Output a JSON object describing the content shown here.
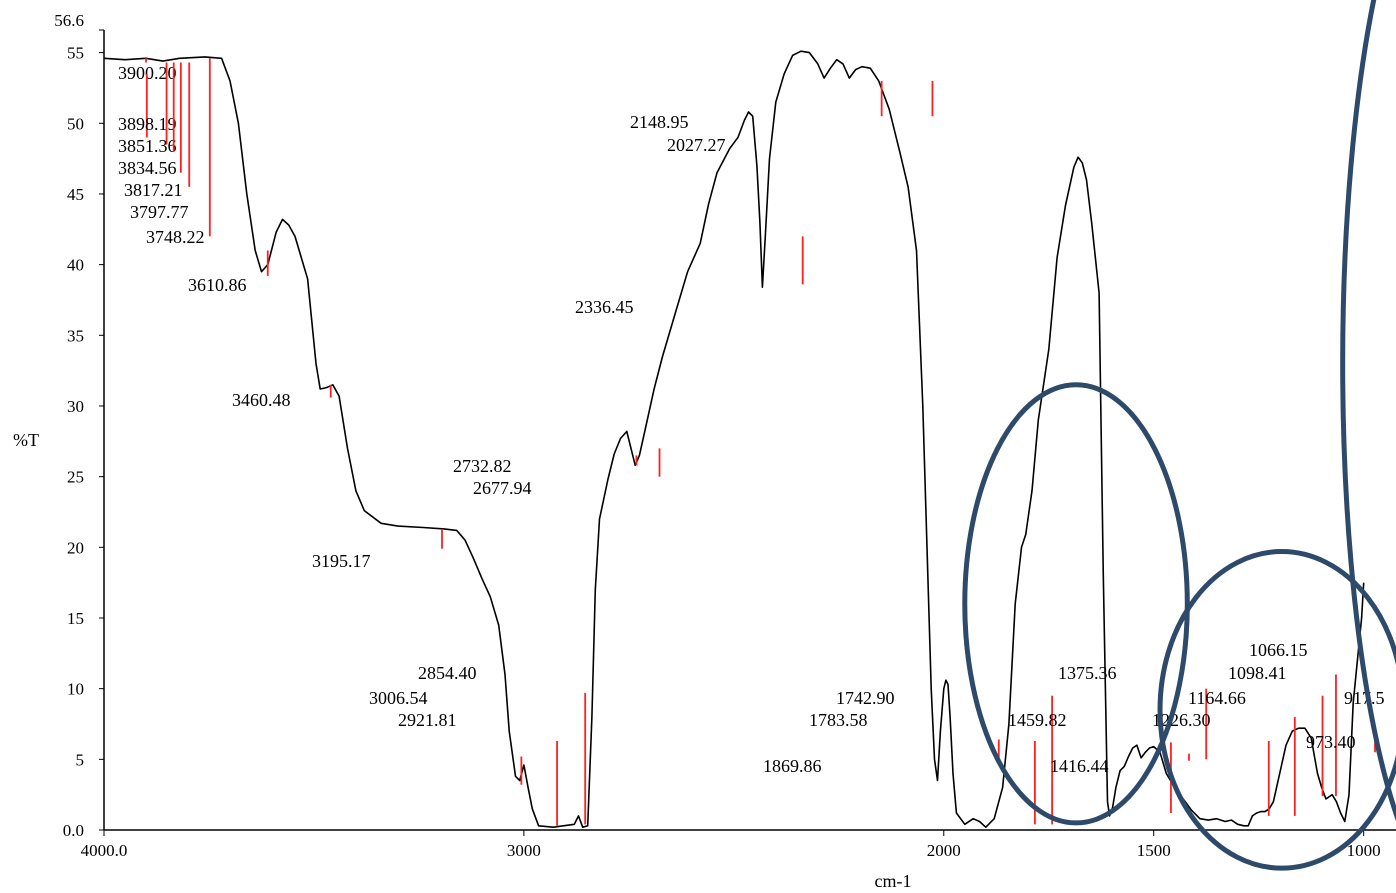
{
  "chart_data": {
    "type": "line",
    "xlabel": "cm-1",
    "ylabel": "%T",
    "x_reversed": true,
    "xlim": [
      4000,
      923
    ],
    "ylim": [
      0,
      56.6
    ],
    "grid": false,
    "x_ticks": [
      {
        "value": 4000,
        "label": "4000.0"
      },
      {
        "value": 3000,
        "label": "3000"
      },
      {
        "value": 2000,
        "label": "2000"
      },
      {
        "value": 1500,
        "label": "1500"
      },
      {
        "value": 1000,
        "label": "1000"
      }
    ],
    "y_ticks": [
      {
        "value": 0,
        "label": "0.0"
      },
      {
        "value": 5,
        "label": "5"
      },
      {
        "value": 10,
        "label": "10"
      },
      {
        "value": 15,
        "label": "15"
      },
      {
        "value": 20,
        "label": "20"
      },
      {
        "value": 25,
        "label": "25"
      },
      {
        "value": 30,
        "label": "30"
      },
      {
        "value": 35,
        "label": "35"
      },
      {
        "value": 40,
        "label": "40"
      },
      {
        "value": 45,
        "label": "45"
      },
      {
        "value": 50,
        "label": "50"
      },
      {
        "value": 55,
        "label": "55"
      },
      {
        "value": 56.6,
        "label": "56.6"
      }
    ],
    "series": [
      {
        "color": "#000000",
        "points": [
          [
            4000,
            54.6
          ],
          [
            3950,
            54.5
          ],
          [
            3900,
            54.6
          ],
          [
            3860,
            54.4
          ],
          [
            3820,
            54.6
          ],
          [
            3760,
            54.7
          ],
          [
            3720,
            54.6
          ],
          [
            3700,
            53
          ],
          [
            3680,
            50
          ],
          [
            3660,
            45
          ],
          [
            3640,
            41
          ],
          [
            3625,
            39.5
          ],
          [
            3610,
            40
          ],
          [
            3590,
            42.3
          ],
          [
            3575,
            43.2
          ],
          [
            3560,
            42.8
          ],
          [
            3545,
            42
          ],
          [
            3530,
            40.5
          ],
          [
            3515,
            39
          ],
          [
            3505,
            36
          ],
          [
            3495,
            33
          ],
          [
            3485,
            31.2
          ],
          [
            3470,
            31.3
          ],
          [
            3455,
            31.5
          ],
          [
            3440,
            30.7
          ],
          [
            3420,
            27
          ],
          [
            3400,
            24
          ],
          [
            3380,
            22.6
          ],
          [
            3340,
            21.7
          ],
          [
            3300,
            21.5
          ],
          [
            3240,
            21.4
          ],
          [
            3190,
            21.3
          ],
          [
            3160,
            21.2
          ],
          [
            3140,
            20.5
          ],
          [
            3120,
            19.2
          ],
          [
            3100,
            17.8
          ],
          [
            3080,
            16.5
          ],
          [
            3060,
            14.5
          ],
          [
            3045,
            11
          ],
          [
            3035,
            7
          ],
          [
            3020,
            3.8
          ],
          [
            3010,
            3.5
          ],
          [
            3000,
            4.6
          ],
          [
            2990,
            3
          ],
          [
            2980,
            1.5
          ],
          [
            2965,
            0.3
          ],
          [
            2930,
            0.2
          ],
          [
            2880,
            0.4
          ],
          [
            2870,
            1
          ],
          [
            2860,
            0.2
          ],
          [
            2848,
            0.3
          ],
          [
            2838,
            8
          ],
          [
            2830,
            17
          ],
          [
            2820,
            22
          ],
          [
            2800,
            24.8
          ],
          [
            2785,
            26.6
          ],
          [
            2770,
            27.7
          ],
          [
            2755,
            28.2
          ],
          [
            2745,
            27
          ],
          [
            2735,
            25.8
          ],
          [
            2725,
            26.5
          ],
          [
            2710,
            28.5
          ],
          [
            2690,
            31.2
          ],
          [
            2670,
            33.5
          ],
          [
            2640,
            36.5
          ],
          [
            2610,
            39.5
          ],
          [
            2580,
            41.5
          ],
          [
            2560,
            44.3
          ],
          [
            2540,
            46.5
          ],
          [
            2510,
            48.2
          ],
          [
            2490,
            49
          ],
          [
            2475,
            50.2
          ],
          [
            2465,
            50.8
          ],
          [
            2455,
            50.5
          ],
          [
            2445,
            47
          ],
          [
            2438,
            43
          ],
          [
            2432,
            38.4
          ],
          [
            2425,
            42
          ],
          [
            2415,
            47.5
          ],
          [
            2400,
            51.5
          ],
          [
            2380,
            53.5
          ],
          [
            2360,
            54.8
          ],
          [
            2340,
            55.1
          ],
          [
            2320,
            55
          ],
          [
            2300,
            54.2
          ],
          [
            2285,
            53.2
          ],
          [
            2270,
            53.9
          ],
          [
            2255,
            54.5
          ],
          [
            2240,
            54.2
          ],
          [
            2225,
            53.2
          ],
          [
            2210,
            53.8
          ],
          [
            2195,
            54
          ],
          [
            2175,
            53.9
          ],
          [
            2155,
            53
          ],
          [
            2130,
            51
          ],
          [
            2105,
            48
          ],
          [
            2085,
            45.5
          ],
          [
            2065,
            41
          ],
          [
            2050,
            30
          ],
          [
            2040,
            20
          ],
          [
            2030,
            10
          ],
          [
            2022,
            5
          ],
          [
            2015,
            3.5
          ],
          [
            2008,
            7
          ],
          [
            2000,
            10
          ],
          [
            1995,
            10.6
          ],
          [
            1990,
            10.3
          ],
          [
            1985,
            8
          ],
          [
            1978,
            4
          ],
          [
            1970,
            1.2
          ],
          [
            1950,
            0.4
          ],
          [
            1930,
            0.8
          ],
          [
            1915,
            0.6
          ],
          [
            1900,
            0.2
          ],
          [
            1880,
            0.8
          ],
          [
            1860,
            3
          ],
          [
            1845,
            7.5
          ],
          [
            1830,
            16
          ],
          [
            1815,
            20
          ],
          [
            1805,
            20.9
          ],
          [
            1790,
            24
          ],
          [
            1775,
            29
          ],
          [
            1765,
            31
          ],
          [
            1750,
            34
          ],
          [
            1730,
            40.5
          ],
          [
            1710,
            44.2
          ],
          [
            1690,
            46.9
          ],
          [
            1680,
            47.6
          ],
          [
            1670,
            47.2
          ],
          [
            1660,
            46
          ],
          [
            1648,
            43
          ],
          [
            1630,
            38
          ],
          [
            1625,
            28
          ],
          [
            1620,
            18
          ],
          [
            1615,
            10
          ],
          [
            1610,
            2
          ],
          [
            1605,
            1
          ],
          [
            1598,
            1.6
          ],
          [
            1590,
            3
          ],
          [
            1580,
            4.2
          ],
          [
            1570,
            4.5
          ],
          [
            1560,
            5.2
          ],
          [
            1550,
            5.8
          ],
          [
            1540,
            6
          ],
          [
            1530,
            5.1
          ],
          [
            1520,
            5.5
          ],
          [
            1510,
            5.8
          ],
          [
            1500,
            5.9
          ],
          [
            1485,
            5.5
          ],
          [
            1470,
            4
          ],
          [
            1450,
            3
          ],
          [
            1430,
            2.2
          ],
          [
            1410,
            1.4
          ],
          [
            1390,
            0.8
          ],
          [
            1370,
            0.7
          ],
          [
            1350,
            0.8
          ],
          [
            1330,
            0.6
          ],
          [
            1315,
            0.7
          ],
          [
            1300,
            0.4
          ],
          [
            1285,
            0.3
          ],
          [
            1275,
            0.3
          ],
          [
            1265,
            1
          ],
          [
            1255,
            1.2
          ],
          [
            1245,
            1.3
          ],
          [
            1235,
            1.3
          ],
          [
            1225,
            1.5
          ],
          [
            1215,
            2
          ],
          [
            1200,
            4
          ],
          [
            1185,
            6
          ],
          [
            1170,
            7
          ],
          [
            1155,
            7.2
          ],
          [
            1140,
            7.2
          ],
          [
            1125,
            6.5
          ],
          [
            1110,
            4
          ],
          [
            1100,
            3
          ],
          [
            1090,
            2.2
          ],
          [
            1075,
            2.5
          ],
          [
            1065,
            2
          ],
          [
            1055,
            1.2
          ],
          [
            1045,
            0.6
          ],
          [
            1035,
            2.5
          ],
          [
            1025,
            9
          ],
          [
            1015,
            12
          ],
          [
            1005,
            15
          ],
          [
            1000,
            17.5
          ]
        ]
      }
    ],
    "peaks": [
      {
        "x": 3900,
        "label": "3900.20",
        "y_top": 54.6,
        "y_bottom": 54.3
      },
      {
        "x": 3898,
        "label": "3898.19",
        "y_top": 53.5,
        "y_bottom": 49
      },
      {
        "x": 3851,
        "label": "3851.36",
        "y_top": 54.3,
        "y_bottom": 48.5
      },
      {
        "x": 3834,
        "label": "3834.56",
        "y_top": 54.3,
        "y_bottom": 48
      },
      {
        "x": 3817,
        "label": "3817.21",
        "y_top": 54.3,
        "y_bottom": 46.5
      },
      {
        "x": 3797,
        "label": "3797.77",
        "y_top": 54.3,
        "y_bottom": 45.5
      },
      {
        "x": 3748,
        "label": "3748.22",
        "y_top": 54.6,
        "y_bottom": 42
      },
      {
        "x": 3610,
        "label": "3610.86",
        "y_top": 41,
        "y_bottom": 39.2
      },
      {
        "x": 3460,
        "label": "3460.48",
        "y_top": 31.5,
        "y_bottom": 30.6
      },
      {
        "x": 3195,
        "label": "3195.17",
        "y_top": 21.3,
        "y_bottom": 19.9
      },
      {
        "x": 3006,
        "label": "3006.54",
        "y_top": 5.2,
        "y_bottom": 3.2
      },
      {
        "x": 2921,
        "label": "2921.81",
        "y_top": 6.3,
        "y_bottom": 0.3
      },
      {
        "x": 2854,
        "label": "2854.40",
        "y_top": 9.7,
        "y_bottom": 0.4
      },
      {
        "x": 2732,
        "label": "2732.82",
        "y_top": 26.5,
        "y_bottom": 25.8
      },
      {
        "x": 2677,
        "label": "2677.94",
        "y_top": 27,
        "y_bottom": 25
      },
      {
        "x": 2336,
        "label": "2336.45",
        "y_top": 42,
        "y_bottom": 38.6
      },
      {
        "x": 2148,
        "label": "2148.95",
        "y_top": 53,
        "y_bottom": 50.5
      },
      {
        "x": 2027,
        "label": "2027.27",
        "y_top": 53,
        "y_bottom": 50.5
      },
      {
        "x": 1869,
        "label": "1869.86",
        "y_top": 6.4,
        "y_bottom": 5
      },
      {
        "x": 1783,
        "label": "1783.58",
        "y_top": 6.3,
        "y_bottom": 0.4
      },
      {
        "x": 1742,
        "label": "1742.90",
        "y_top": 9.5,
        "y_bottom": 0.4
      },
      {
        "x": 1459,
        "label": "1459.82",
        "y_top": 6.2,
        "y_bottom": 1.2
      },
      {
        "x": 1416,
        "label": "1416.44",
        "y_top": 5.4,
        "y_bottom": 4.9
      },
      {
        "x": 1375,
        "label": "1375.36",
        "y_top": 10,
        "y_bottom": 5
      },
      {
        "x": 1226,
        "label": "1226.30",
        "y_top": 6.3,
        "y_bottom": 1
      },
      {
        "x": 1164,
        "label": "1164.66",
        "y_top": 8,
        "y_bottom": 1
      },
      {
        "x": 1098,
        "label": "1098.41",
        "y_top": 9.5,
        "y_bottom": 2.4
      },
      {
        "x": 1066,
        "label": "1066.15",
        "y_top": 11,
        "y_bottom": 2.4
      },
      {
        "x": 973,
        "label": "973.40",
        "y_top": 6.2,
        "y_bottom": 5.5
      },
      {
        "x": 917,
        "label": "917.5",
        "y_top": 8.5,
        "y_bottom": 1.2
      }
    ],
    "annotations": [
      {
        "type": "ellipse",
        "color": "#2e4a6b",
        "cx": 1685,
        "cy": 16,
        "rx": 265,
        "ry": 15.5
      },
      {
        "type": "ellipse",
        "color": "#2e4a6b",
        "cx": 1195,
        "cy": 8.5,
        "rx": 290,
        "ry": 11.2
      },
      {
        "type": "ellipse",
        "color": "#2e4a6b",
        "cx": 770,
        "cy": 33,
        "rx": 280,
        "ry": 38
      }
    ]
  }
}
